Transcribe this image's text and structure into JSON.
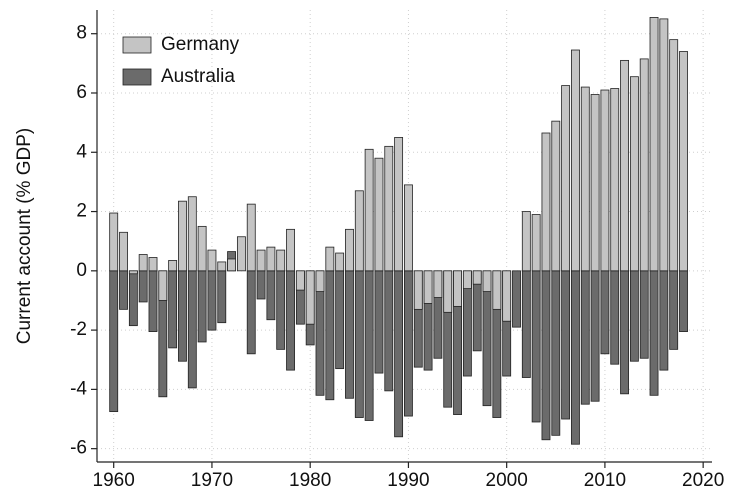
{
  "chart_data": {
    "type": "bar",
    "y_label": "Current account (% GDP)",
    "x": [
      1960,
      1961,
      1962,
      1963,
      1964,
      1965,
      1966,
      1967,
      1968,
      1969,
      1970,
      1971,
      1972,
      1973,
      1974,
      1975,
      1976,
      1977,
      1978,
      1979,
      1980,
      1981,
      1982,
      1983,
      1984,
      1985,
      1986,
      1987,
      1988,
      1989,
      1990,
      1991,
      1992,
      1993,
      1994,
      1995,
      1996,
      1997,
      1998,
      1999,
      2000,
      2001,
      2002,
      2003,
      2004,
      2005,
      2006,
      2007,
      2008,
      2009,
      2010,
      2011,
      2012,
      2013,
      2014,
      2015,
      2016,
      2017,
      2018
    ],
    "series": [
      {
        "name": "Australia",
        "color": "#6b6b6b",
        "values": [
          -4.75,
          -1.3,
          -1.85,
          -1.05,
          -2.05,
          -4.25,
          -2.6,
          -3.05,
          -3.95,
          -2.4,
          -2.0,
          -1.75,
          0.65,
          0.0,
          -2.8,
          -0.95,
          -1.65,
          -2.65,
          -3.35,
          -1.8,
          -2.5,
          -4.2,
          -4.35,
          -3.3,
          -4.3,
          -4.95,
          -5.05,
          -3.45,
          -4.05,
          -5.6,
          -4.9,
          -3.25,
          -3.35,
          -2.95,
          -4.6,
          -4.85,
          -3.55,
          -2.7,
          -4.55,
          -4.95,
          -3.55,
          -1.9,
          -3.6,
          -5.1,
          -5.7,
          -5.55,
          -5.0,
          -5.85,
          -4.5,
          -4.4,
          -2.8,
          -3.15,
          -4.15,
          -3.05,
          -2.95,
          -4.2,
          -3.35,
          -2.65,
          -2.05
        ]
      },
      {
        "name": "Germany",
        "color": "#c4c4c4",
        "values": [
          1.95,
          1.3,
          -0.1,
          0.55,
          0.45,
          -1.0,
          0.35,
          2.35,
          2.5,
          1.5,
          0.7,
          0.3,
          0.4,
          1.15,
          2.25,
          0.7,
          0.8,
          0.7,
          1.4,
          -0.65,
          -1.8,
          -0.7,
          0.8,
          0.6,
          1.4,
          2.7,
          4.1,
          3.8,
          4.2,
          4.5,
          2.9,
          -1.3,
          -1.1,
          -0.9,
          -1.4,
          -1.2,
          -0.6,
          -0.45,
          -0.7,
          -1.3,
          -1.7,
          0.0,
          2.0,
          1.9,
          4.65,
          5.05,
          6.25,
          7.45,
          6.2,
          5.95,
          6.1,
          6.15,
          7.1,
          6.55,
          7.15,
          8.55,
          8.5,
          7.8,
          7.4
        ]
      }
    ],
    "legend_order": [
      "Germany",
      "Australia"
    ],
    "xlim": [
      1958.3,
      2020.9
    ],
    "xticks": [
      1960,
      1970,
      1980,
      1990,
      2000,
      2010,
      2020
    ],
    "ylim": [
      -6.45,
      8.8
    ],
    "yticks": [
      -6,
      -4,
      -2,
      0,
      2,
      4,
      6,
      8
    ],
    "grid": true,
    "legend": "upper left"
  }
}
